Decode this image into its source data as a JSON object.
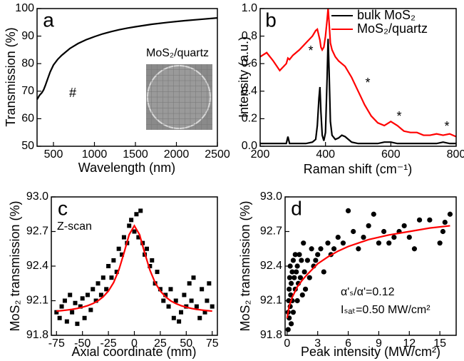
{
  "chart_data": [
    {
      "type": "line",
      "label": "a",
      "xlabel": "Wavelength (nm)",
      "ylabel": "Transmission (%)",
      "xlim": [
        300,
        2500
      ],
      "xticks": [
        500,
        1000,
        1500,
        2000,
        2500
      ],
      "ylim": [
        50,
        100
      ],
      "yticks": [
        50,
        60,
        70,
        80,
        90,
        100
      ],
      "annotations": [
        "#",
        "MoS₂/quartz"
      ],
      "series": [
        {
          "color": "#000000",
          "type": "line",
          "x": [
            300,
            330,
            360,
            380,
            400,
            430,
            460,
            500,
            550,
            600,
            700,
            800,
            900,
            1000,
            1100,
            1200,
            1300,
            1400,
            1500,
            1700,
            1900,
            2100,
            2300,
            2500
          ],
          "values": [
            67,
            68.5,
            69.5,
            70.5,
            72,
            74.5,
            77,
            79.5,
            81.5,
            83,
            85.5,
            87.3,
            88.7,
            89.8,
            90.8,
            91.6,
            92.3,
            92.9,
            93.4,
            94.3,
            95,
            95.6,
            96.1,
            96.6
          ]
        }
      ]
    },
    {
      "type": "line",
      "label": "b",
      "xlabel": "Raman shift (cm⁻¹)",
      "ylabel": "Intensity (a.u.)",
      "xlim": [
        200,
        800
      ],
      "xticks": [
        200,
        400,
        600,
        800
      ],
      "ylim": [
        0,
        1
      ],
      "yticks": [
        {
          "value": 0,
          "label": "0.0"
        },
        0.2,
        0.4,
        0.6,
        0.8,
        {
          "value": 1,
          "label": "1.0"
        }
      ],
      "legend": "upper right",
      "annotations": [
        "*",
        "*",
        "*",
        "*"
      ],
      "series": [
        {
          "name": "bulk MoS₂",
          "color": "#000000",
          "type": "line",
          "x": [
            200,
            220,
            240,
            260,
            280,
            285,
            290,
            300,
            320,
            340,
            360,
            370,
            375,
            380,
            383,
            386,
            390,
            395,
            400,
            405,
            408,
            411,
            415,
            420,
            430,
            440,
            450,
            460,
            480,
            500,
            520,
            540,
            560,
            580,
            600,
            620,
            640,
            660,
            680,
            700,
            720,
            740,
            760,
            780,
            800
          ],
          "values": [
            0.02,
            0.02,
            0.02,
            0.02,
            0.02,
            0.07,
            0.02,
            0.02,
            0.02,
            0.02,
            0.03,
            0.05,
            0.15,
            0.35,
            0.43,
            0.25,
            0.08,
            0.04,
            0.1,
            0.5,
            0.78,
            0.55,
            0.18,
            0.08,
            0.05,
            0.06,
            0.08,
            0.07,
            0.03,
            0.02,
            0.02,
            0.02,
            0.02,
            0.03,
            0.03,
            0.02,
            0.02,
            0.02,
            0.02,
            0.02,
            0.02,
            0.02,
            0.03,
            0.02,
            0.02
          ]
        },
        {
          "name": "MoS₂/quartz",
          "color": "#ff0000",
          "type": "line",
          "x": [
            200,
            220,
            240,
            260,
            280,
            285,
            290,
            300,
            320,
            340,
            360,
            370,
            375,
            380,
            383,
            386,
            390,
            395,
            400,
            405,
            408,
            411,
            415,
            420,
            430,
            440,
            450,
            460,
            480,
            500,
            520,
            540,
            560,
            580,
            600,
            620,
            640,
            660,
            680,
            700,
            720,
            740,
            760,
            780,
            800
          ],
          "values": [
            0.65,
            0.68,
            0.62,
            0.55,
            0.6,
            0.64,
            0.63,
            0.66,
            0.7,
            0.75,
            0.8,
            0.84,
            0.85,
            0.8,
            0.77,
            0.72,
            0.7,
            0.72,
            0.8,
            0.92,
            1.0,
            0.9,
            0.75,
            0.7,
            0.65,
            0.62,
            0.6,
            0.58,
            0.5,
            0.4,
            0.3,
            0.22,
            0.17,
            0.15,
            0.18,
            0.15,
            0.11,
            0.1,
            0.1,
            0.08,
            0.08,
            0.09,
            0.08,
            0.09,
            0.07
          ]
        }
      ]
    },
    {
      "type": "scatter",
      "label": "c",
      "xlabel": "Axial coordinate (mm)",
      "ylabel": "MoS₂ transmission (%)",
      "xlim": [
        -80,
        80
      ],
      "xticks": [
        -75,
        -50,
        -25,
        0,
        25,
        50,
        75
      ],
      "ylim": [
        91.8,
        93
      ],
      "yticks": [
        91.8,
        92.1,
        92.4,
        92.7,
        {
          "value": 93,
          "label": "93.0"
        }
      ],
      "annotations": [
        "Z-scan"
      ],
      "series": [
        {
          "color": "#000000",
          "type": "scatter",
          "marker": "square",
          "x": [
            -75,
            -72,
            -70,
            -67,
            -65,
            -62,
            -60,
            -57,
            -55,
            -52,
            -50,
            -48,
            -45,
            -42,
            -40,
            -37,
            -35,
            -32,
            -30,
            -27,
            -25,
            -22,
            -20,
            -17,
            -15,
            -12,
            -10,
            -7,
            -5,
            -3,
            0,
            2,
            4,
            6,
            8,
            10,
            12,
            15,
            17,
            20,
            22,
            25,
            28,
            30,
            33,
            35,
            38,
            40,
            43,
            45,
            48,
            50,
            53,
            55,
            57,
            60,
            63,
            65,
            68,
            70,
            72,
            75
          ],
          "values": [
            92.0,
            91.95,
            92.05,
            92.1,
            91.92,
            92.15,
            92.0,
            92.08,
            91.9,
            92.05,
            92.12,
            91.95,
            92.15,
            92.02,
            92.2,
            92.1,
            92.25,
            92.15,
            92.3,
            92.2,
            92.4,
            92.3,
            92.45,
            92.35,
            92.55,
            92.5,
            92.65,
            92.6,
            92.75,
            92.8,
            92.7,
            92.85,
            92.65,
            92.88,
            92.6,
            92.5,
            92.55,
            92.4,
            92.45,
            92.25,
            92.35,
            92.2,
            92.1,
            92.15,
            92.05,
            92.2,
            91.95,
            92.1,
            91.92,
            92.0,
            92.15,
            92.05,
            92.25,
            92.1,
            92.3,
            92.05,
            91.95,
            92.2,
            92.0,
            92.1,
            92.25,
            92.05
          ]
        },
        {
          "color": "#ff0000",
          "type": "line",
          "x": [
            -75,
            -70,
            -65,
            -60,
            -55,
            -50,
            -45,
            -40,
            -35,
            -30,
            -25,
            -20,
            -15,
            -10,
            -5,
            0,
            5,
            10,
            15,
            20,
            25,
            30,
            35,
            40,
            45,
            50,
            55,
            60,
            65,
            70,
            75
          ],
          "values": [
            92.01,
            92.014,
            92.019,
            92.025,
            92.033,
            92.044,
            92.057,
            92.075,
            92.099,
            92.134,
            92.184,
            92.257,
            92.365,
            92.513,
            92.673,
            92.75,
            92.673,
            92.513,
            92.365,
            92.257,
            92.184,
            92.134,
            92.099,
            92.075,
            92.057,
            92.044,
            92.033,
            92.025,
            92.019,
            92.014,
            92.01
          ]
        }
      ]
    },
    {
      "type": "scatter",
      "label": "d",
      "xlabel": "Peak intensity (MW/cm²)",
      "ylabel": "MoS₂ transmission (%)",
      "xlim": [
        -0.2,
        16.6
      ],
      "xticks": [
        0,
        3,
        6,
        9,
        12,
        15
      ],
      "ylim": [
        91.8,
        93
      ],
      "yticks": [
        91.8,
        92.1,
        92.4,
        92.7,
        {
          "value": 93,
          "label": "93.0"
        }
      ],
      "annotations": [
        "α'ₛ/α'=0.12",
        "Iₛₐₜ=0.50 MW/cm²"
      ],
      "series": [
        {
          "color": "#000000",
          "type": "scatter",
          "marker": "circle",
          "x": [
            0.1,
            0.1,
            0.15,
            0.2,
            0.2,
            0.25,
            0.3,
            0.3,
            0.35,
            0.4,
            0.4,
            0.5,
            0.5,
            0.6,
            0.6,
            0.7,
            0.8,
            0.8,
            0.9,
            1.0,
            1.0,
            1.1,
            1.2,
            1.3,
            1.4,
            1.5,
            1.6,
            1.7,
            1.8,
            2.0,
            2.2,
            2.4,
            2.6,
            2.8,
            3.0,
            3.3,
            3.6,
            4.0,
            4.3,
            4.6,
            5.0,
            5.5,
            6.0,
            6.5,
            7.0,
            7.5,
            8.0,
            8.5,
            9.0,
            9.5,
            10.0,
            10.5,
            11.0,
            11.5,
            12.0,
            12.5,
            13.0,
            14.0,
            15.0,
            15.3,
            15.5,
            16.0
          ],
          "values": [
            91.85,
            92.0,
            92.1,
            91.95,
            92.2,
            92.3,
            92.05,
            92.4,
            92.15,
            92.25,
            91.9,
            92.35,
            92.1,
            92.45,
            92.0,
            92.3,
            92.2,
            92.5,
            92.35,
            92.1,
            92.4,
            92.25,
            92.5,
            92.3,
            92.45,
            92.15,
            92.6,
            92.35,
            92.2,
            92.45,
            92.3,
            92.55,
            92.4,
            92.45,
            92.5,
            92.55,
            92.35,
            92.6,
            92.5,
            92.55,
            92.65,
            92.6,
            92.88,
            92.7,
            92.55,
            92.65,
            92.75,
            92.85,
            92.6,
            92.7,
            92.6,
            92.65,
            92.7,
            92.75,
            92.65,
            92.55,
            92.8,
            92.8,
            92.6,
            92.7,
            92.78,
            92.85
          ]
        },
        {
          "color": "#ff0000",
          "type": "line",
          "x": [
            0,
            0.2,
            0.5,
            1,
            1.5,
            2,
            3,
            4,
            5,
            6,
            8,
            10,
            12,
            14,
            16
          ],
          "values": [
            91.95,
            92.05,
            92.13,
            92.22,
            92.28,
            92.33,
            92.42,
            92.48,
            92.53,
            92.57,
            92.63,
            92.67,
            92.7,
            92.73,
            92.75
          ]
        }
      ]
    }
  ]
}
